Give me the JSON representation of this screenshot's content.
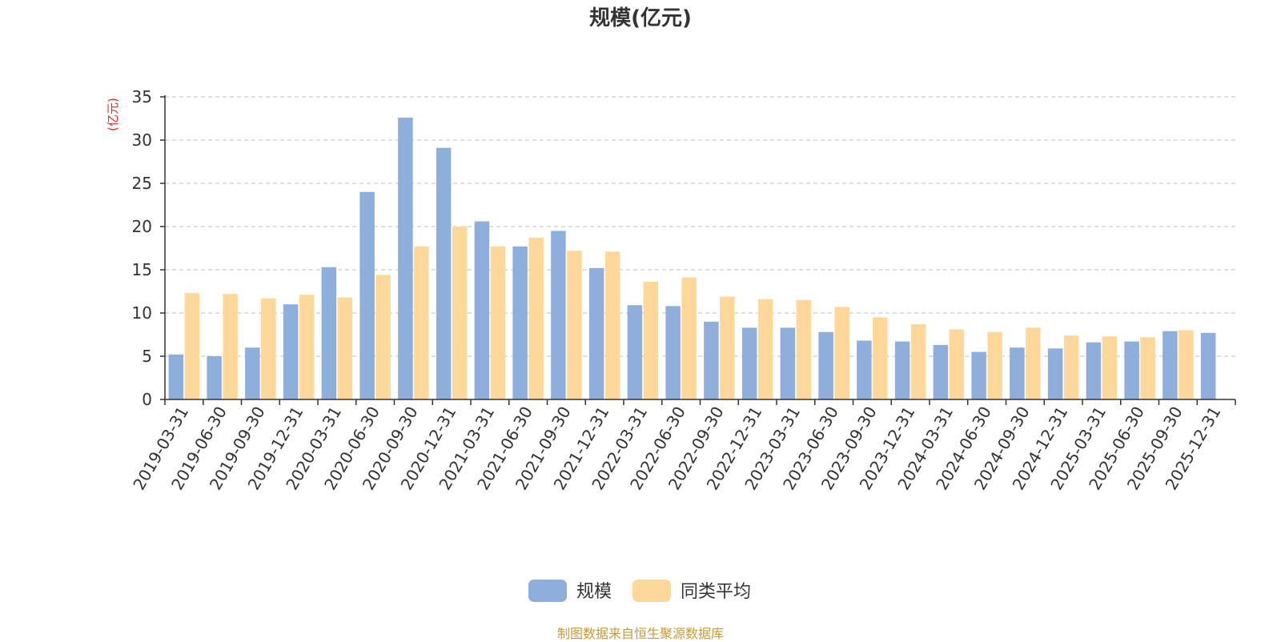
{
  "chart_data": {
    "type": "bar",
    "title": "规模(亿元)",
    "ylabel": "(亿元)",
    "ylim": [
      0,
      35
    ],
    "yticks": [
      0,
      5,
      10,
      15,
      20,
      25,
      30,
      35
    ],
    "grid": true,
    "legend_position": "bottom-center",
    "categories": [
      "2019-03-31",
      "2019-06-30",
      "2019-09-30",
      "2019-12-31",
      "2020-03-31",
      "2020-06-30",
      "2020-09-30",
      "2020-12-31",
      "2021-03-31",
      "2021-06-30",
      "2021-09-30",
      "2021-12-31",
      "2022-03-31",
      "2022-06-30",
      "2022-09-30",
      "2022-12-31",
      "2023-03-31",
      "2023-06-30",
      "2023-09-30",
      "2023-12-31",
      "2024-03-31",
      "2024-06-30",
      "2024-09-30",
      "2024-12-31",
      "2025-03-31",
      "2025-06-30",
      "2025-09-30",
      "2025-12-31"
    ],
    "series": [
      {
        "name": "规模",
        "color": "#8eaedb",
        "values": [
          5.2,
          5.0,
          6.0,
          11.0,
          15.3,
          24.0,
          32.6,
          29.1,
          20.6,
          17.7,
          19.5,
          15.2,
          10.9,
          10.8,
          9.0,
          8.3,
          8.3,
          7.8,
          6.8,
          6.7,
          6.3,
          5.5,
          6.0,
          5.9,
          6.6,
          6.7,
          7.9,
          7.7
        ]
      },
      {
        "name": "同类平均",
        "color": "#fed89a",
        "values": [
          12.3,
          12.2,
          11.7,
          12.1,
          11.8,
          14.4,
          17.7,
          20.0,
          17.7,
          18.7,
          17.2,
          17.1,
          13.6,
          14.1,
          11.9,
          11.6,
          11.5,
          10.7,
          9.5,
          8.7,
          8.1,
          7.8,
          8.3,
          7.4,
          7.3,
          7.2,
          8.0,
          null
        ]
      }
    ]
  },
  "footer": {
    "source": "制图数据来自恒生聚源数据库"
  }
}
